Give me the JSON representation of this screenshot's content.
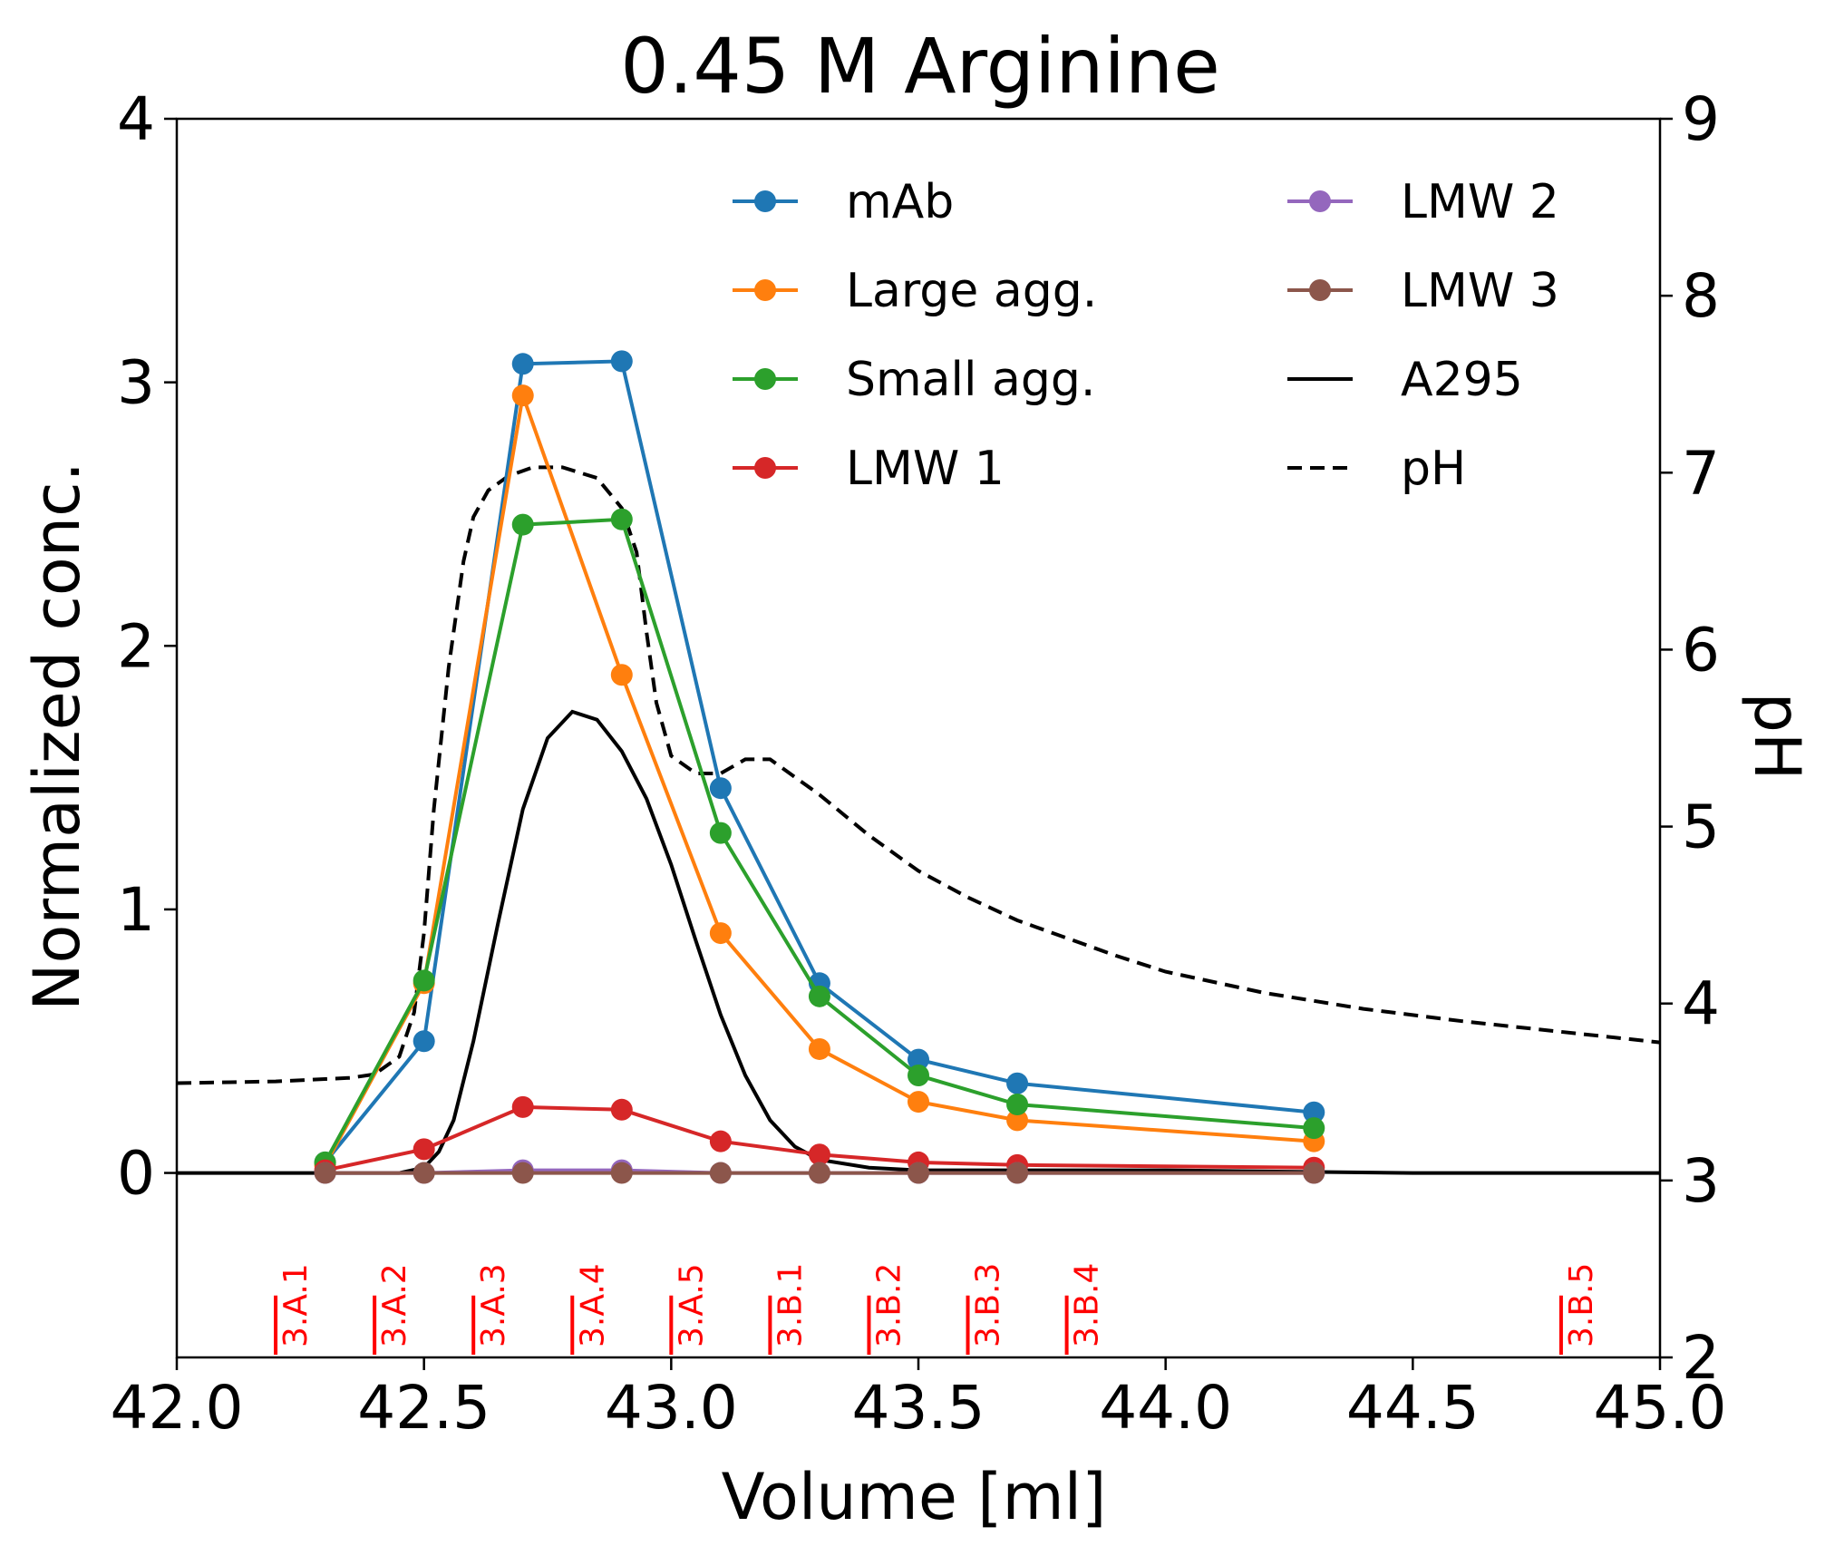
{
  "chart_data": {
    "type": "line",
    "title": "0.45 M Arginine",
    "xlabel": "Volume [ml]",
    "ylabel": "Normalized conc.",
    "y2label": "pH",
    "xlim": [
      42.0,
      45.0
    ],
    "ylim": [
      -0.7,
      4.0
    ],
    "y2lim": [
      2,
      9
    ],
    "xticks": [
      "42.0",
      "42.5",
      "43.0",
      "43.5",
      "44.0",
      "44.5",
      "45.0"
    ],
    "yticks": [
      "0",
      "1",
      "2",
      "3",
      "4"
    ],
    "y2ticks": [
      "2",
      "3",
      "4",
      "5",
      "6",
      "7",
      "8",
      "9"
    ],
    "x": [
      42.3,
      42.5,
      42.7,
      42.9,
      43.1,
      43.3,
      43.5,
      43.7,
      44.3
    ],
    "series": [
      {
        "name": "mAb",
        "color": "#1f77b4",
        "marker": "circle",
        "values": [
          0.04,
          0.5,
          3.07,
          3.08,
          1.46,
          0.72,
          0.43,
          0.34,
          0.23
        ]
      },
      {
        "name": "Large agg.",
        "color": "#ff7f0e",
        "marker": "circle",
        "values": [
          0.03,
          0.72,
          2.95,
          1.89,
          0.91,
          0.47,
          0.27,
          0.2,
          0.12
        ]
      },
      {
        "name": "Small agg.",
        "color": "#2ca02c",
        "marker": "circle",
        "values": [
          0.04,
          0.73,
          2.46,
          2.48,
          1.29,
          0.67,
          0.37,
          0.26,
          0.17
        ]
      },
      {
        "name": "LMW 1",
        "color": "#d62728",
        "marker": "circle",
        "values": [
          0.01,
          0.09,
          0.25,
          0.24,
          0.12,
          0.07,
          0.04,
          0.03,
          0.02
        ]
      },
      {
        "name": "LMW 2",
        "color": "#9467bd",
        "marker": "circle",
        "values": [
          0.0,
          0.0,
          0.01,
          0.01,
          0.0,
          0.0,
          0.0,
          0.0,
          0.0
        ]
      },
      {
        "name": "LMW 3",
        "color": "#8c564b",
        "marker": "circle",
        "values": [
          0.0,
          0.0,
          0.0,
          0.0,
          0.0,
          0.0,
          0.0,
          0.0,
          0.0
        ]
      }
    ],
    "a295": {
      "name": "A295",
      "color": "#000000",
      "style": "solid",
      "x": [
        42.0,
        42.3,
        42.45,
        42.5,
        42.53,
        42.56,
        42.6,
        42.65,
        42.7,
        42.75,
        42.8,
        42.85,
        42.9,
        42.95,
        43.0,
        43.05,
        43.1,
        43.15,
        43.2,
        43.25,
        43.3,
        43.4,
        43.5,
        43.7,
        44.0,
        44.5,
        45.0
      ],
      "values": [
        0.0,
        0.0,
        0.0,
        0.02,
        0.08,
        0.2,
        0.5,
        0.95,
        1.38,
        1.65,
        1.75,
        1.72,
        1.6,
        1.42,
        1.17,
        0.88,
        0.6,
        0.37,
        0.2,
        0.1,
        0.05,
        0.02,
        0.01,
        0.01,
        0.01,
        0.0,
        0.0
      ]
    },
    "ph": {
      "name": "pH",
      "color": "#000000",
      "style": "dashed",
      "x": [
        42.0,
        42.2,
        42.35,
        42.4,
        42.45,
        42.48,
        42.5,
        42.52,
        42.55,
        42.58,
        42.6,
        42.63,
        42.67,
        42.72,
        42.78,
        42.85,
        42.9,
        42.93,
        42.95,
        42.97,
        43.0,
        43.05,
        43.1,
        43.15,
        43.2,
        43.3,
        43.4,
        43.5,
        43.6,
        43.7,
        43.8,
        43.9,
        44.0,
        44.2,
        44.4,
        44.6,
        44.8,
        45.0
      ],
      "values": [
        3.55,
        3.56,
        3.58,
        3.6,
        3.7,
        3.95,
        4.4,
        5.1,
        5.9,
        6.5,
        6.75,
        6.9,
        6.98,
        7.03,
        7.03,
        6.97,
        6.8,
        6.55,
        6.1,
        5.7,
        5.4,
        5.3,
        5.3,
        5.38,
        5.38,
        5.18,
        4.95,
        4.75,
        4.6,
        4.47,
        4.37,
        4.27,
        4.18,
        4.06,
        3.97,
        3.9,
        3.84,
        3.78
      ]
    },
    "fractions": [
      {
        "label": "3.A.1",
        "x": 42.2
      },
      {
        "label": "3.A.2",
        "x": 42.4
      },
      {
        "label": "3.A.3",
        "x": 42.6
      },
      {
        "label": "3.A.4",
        "x": 42.8
      },
      {
        "label": "3.A.5",
        "x": 43.0
      },
      {
        "label": "3.B.1",
        "x": 43.2
      },
      {
        "label": "3.B.2",
        "x": 43.4
      },
      {
        "label": "3.B.3",
        "x": 43.6
      },
      {
        "label": "3.B.4",
        "x": 43.8
      },
      {
        "label": "3.B.5",
        "x": 44.8
      }
    ],
    "fraction_color": "#ff0000",
    "legend": {
      "placement": "upper right",
      "entries": [
        "mAb",
        "Large agg.",
        "Small agg.",
        "LMW 1",
        "LMW 2",
        "LMW 3",
        "A295",
        "pH"
      ]
    },
    "grid": false
  }
}
